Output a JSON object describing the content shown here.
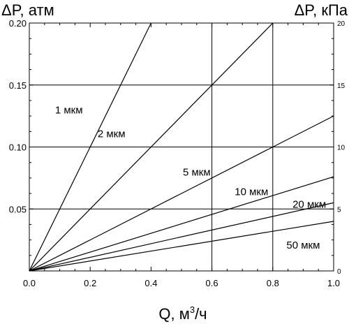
{
  "chart_data": {
    "type": "line",
    "ylabel_left": "ΔP, атм",
    "ylabel_right": "ΔP, кПа",
    "xlabel": {
      "base": "Q, м",
      "sup": "3",
      "tail": "/ч"
    },
    "xlim": [
      0,
      1.0
    ],
    "ylim": [
      0,
      0.2
    ],
    "ylim_right": [
      0,
      20
    ],
    "x_ticks": [
      "0.0",
      "0.2",
      "0.4",
      "0.6",
      "0.8",
      "1.0"
    ],
    "x_tick_values": [
      0,
      0.2,
      0.4,
      0.6,
      0.8,
      1.0
    ],
    "y_ticks": [
      "0.05",
      "0.10",
      "0.15",
      "0.20"
    ],
    "y_tick_values": [
      0.05,
      0.1,
      0.15,
      0.2
    ],
    "y_ticks_right": [
      "0",
      "5",
      "10",
      "15",
      "20"
    ],
    "y_tick_values_right": [
      0,
      5,
      10,
      15,
      20
    ],
    "gridlines_y": [
      0.05,
      0.1,
      0.15
    ],
    "gridlines_x": [
      0.6,
      0.8
    ],
    "series": [
      {
        "name": "1 мкм",
        "x": [
          0,
          0.4
        ],
        "y": [
          0,
          0.2
        ]
      },
      {
        "name": "2 мкм",
        "x": [
          0,
          0.8
        ],
        "y": [
          0,
          0.2
        ]
      },
      {
        "name": "5 мкм",
        "x": [
          0,
          1.0
        ],
        "y": [
          0,
          0.125
        ]
      },
      {
        "name": "10 мкм",
        "x": [
          0,
          1.0
        ],
        "y": [
          0,
          0.076
        ]
      },
      {
        "name": "20 мкм",
        "x": [
          0,
          1.0
        ],
        "y": [
          0,
          0.055
        ]
      },
      {
        "name": "50 мкм",
        "x": [
          0,
          1.0
        ],
        "y": [
          0,
          0.04
        ]
      }
    ],
    "series_labels": [
      {
        "text": "1 мкм",
        "x": 0.13,
        "y": 0.127
      },
      {
        "text": "2 мкм",
        "x": 0.27,
        "y": 0.108
      },
      {
        "text": "5 мкм",
        "x": 0.55,
        "y": 0.077
      },
      {
        "text": "10 мкм",
        "x": 0.73,
        "y": 0.061
      },
      {
        "text": "20 мкм",
        "x": 0.92,
        "y": 0.051
      },
      {
        "text": "50 мкм",
        "x": 0.9,
        "y": 0.018
      }
    ]
  }
}
